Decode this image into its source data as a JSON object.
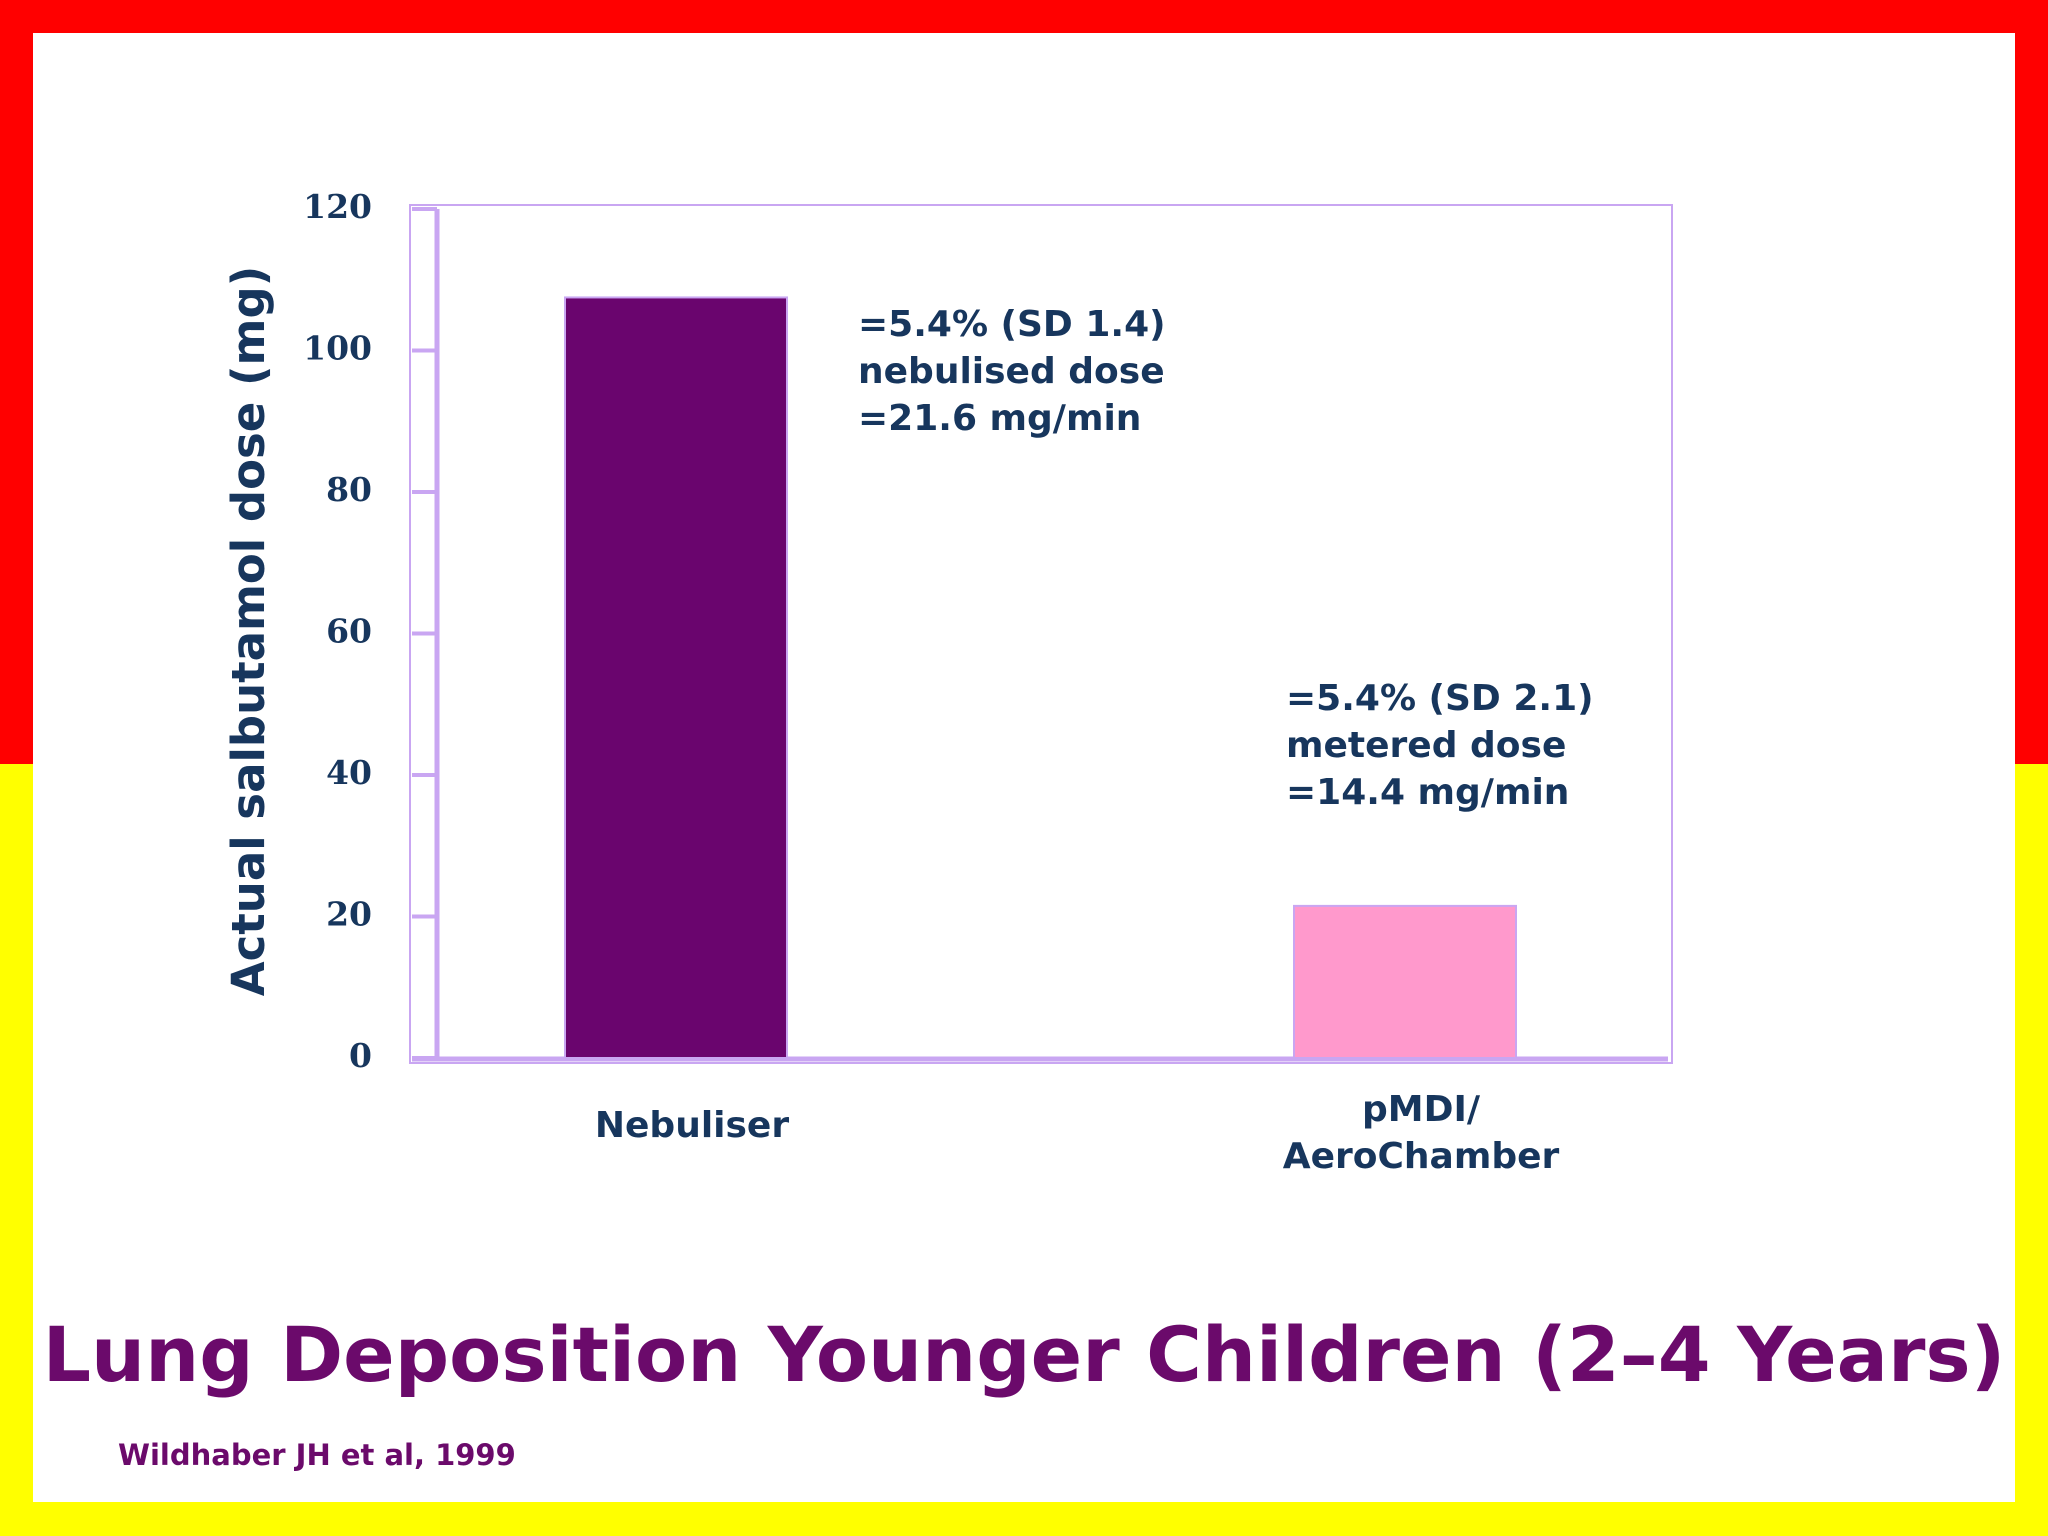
{
  "chart_data": {
    "type": "bar",
    "title": "Lung Deposition Younger Children (2–4 Years)",
    "source": "Wildhaber JH et al, 1999",
    "y_label": "Actual salbutamol dose (mg)",
    "categories": [
      "Nebuliser",
      "pMDI/ AeroChamber"
    ],
    "values": [
      107.5,
      21.5
    ],
    "colors": [
      "#6a056e",
      "#ff99cc"
    ],
    "annotations": [
      [
        "=5.4% (SD 1.4)",
        "nebulised dose",
        "=21.6 mg/min"
      ],
      [
        "=5.4% (SD 2.1)",
        "metered dose",
        "=14.4 mg/min"
      ]
    ],
    "ylim": [
      0,
      120
    ],
    "yticks": [
      0,
      20,
      40,
      60,
      80,
      100,
      120
    ]
  }
}
